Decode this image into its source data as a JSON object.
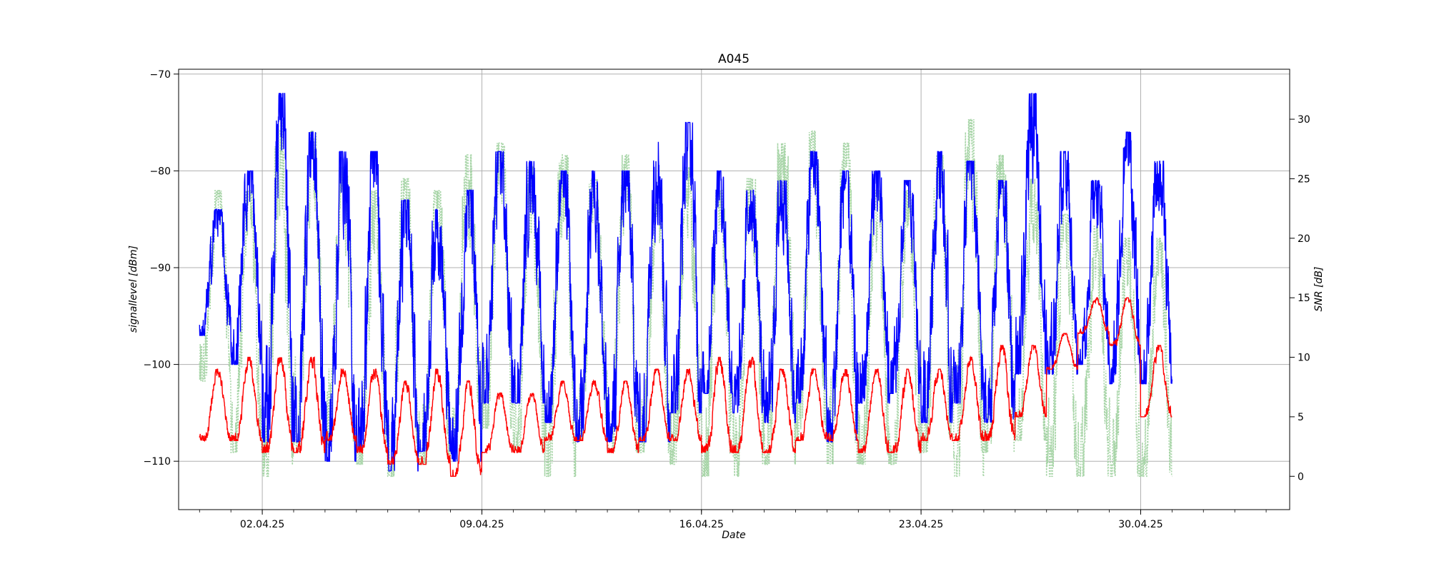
{
  "chart_data": {
    "type": "line",
    "title": "A045",
    "xlabel": "Date",
    "ylabel": "signallevel [dBm]",
    "y2label": "SNR [dB]",
    "grid": true,
    "legend": "none",
    "xlim": [
      "2025-03-30T08:00",
      "2025-05-04T18:00"
    ],
    "ylim": [
      -115,
      -69.5
    ],
    "y2lim": [
      -2.8,
      34.2
    ],
    "x_ticks": [
      {
        "date": "2025-04-02",
        "label": "02.04.25"
      },
      {
        "date": "2025-04-09",
        "label": "09.04.25"
      },
      {
        "date": "2025-04-16",
        "label": "16.04.25"
      },
      {
        "date": "2025-04-23",
        "label": "23.04.25"
      },
      {
        "date": "2025-04-30",
        "label": "30.04.25"
      }
    ],
    "y_ticks": [
      -110,
      -100,
      -90,
      -80,
      -70
    ],
    "y2_ticks": [
      0,
      5,
      10,
      15,
      20,
      25,
      30
    ],
    "series_start": "2025-03-31T00:00",
    "series_end": "2025-05-01T00:00",
    "series": [
      {
        "axis": "left",
        "color": "#0000ff",
        "style": "solid",
        "daily_min": [
          -97,
          -100,
          -108,
          -108,
          -110,
          -109,
          -111,
          -109,
          -110,
          -104,
          -104,
          -106,
          -108,
          -108,
          -108,
          -105,
          -103,
          -105,
          -106,
          -104,
          -108,
          -104,
          -103,
          -106,
          -104,
          -106,
          -101,
          -101,
          -100,
          -102,
          -102
        ],
        "daily_max": [
          -84,
          -80,
          -72,
          -76,
          -78,
          -78,
          -83,
          -84,
          -82,
          -78,
          -79,
          -80,
          -80,
          -80,
          -77,
          -75,
          -80,
          -82,
          -81,
          -78,
          -80,
          -80,
          -81,
          -78,
          -79,
          -81,
          -72,
          -78,
          -81,
          -76,
          -79
        ]
      },
      {
        "axis": "right",
        "color": "#a8d5a8",
        "style": "dotted",
        "daily_min": [
          8,
          2,
          0,
          2,
          2,
          1,
          0,
          1,
          2,
          4,
          2,
          0,
          3,
          2,
          2,
          1,
          0,
          0,
          1,
          3,
          1,
          1,
          1,
          2,
          0,
          2,
          3,
          0,
          0,
          0,
          0
        ],
        "daily_max": [
          24,
          24,
          30,
          29,
          26,
          24,
          25,
          24,
          27,
          28,
          26,
          27,
          25,
          27,
          23,
          26,
          24,
          25,
          28,
          29,
          28,
          24,
          24,
          27,
          30,
          27,
          25,
          22,
          21,
          20,
          20
        ]
      },
      {
        "axis": "right",
        "color": "#ff0000",
        "style": "solid",
        "daily_min": [
          3,
          3,
          2,
          2,
          3,
          2,
          1,
          1,
          0,
          2,
          2,
          3,
          3,
          2,
          3,
          3,
          2,
          2,
          2,
          3,
          3,
          2,
          2,
          3,
          3,
          3,
          5,
          9,
          12,
          11,
          5
        ],
        "daily_max": [
          9,
          10,
          10,
          10,
          9,
          9,
          8,
          9,
          8,
          7,
          7,
          8,
          8,
          8,
          9,
          9,
          10,
          10,
          9,
          9,
          9,
          9,
          9,
          9,
          10,
          11,
          11,
          12,
          15,
          15,
          11
        ]
      }
    ]
  }
}
